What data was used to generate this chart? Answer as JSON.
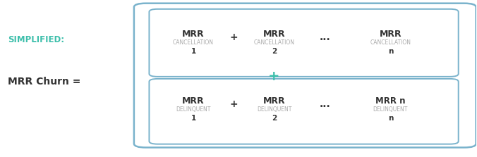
{
  "bg_color": "#ffffff",
  "teal_color": "#3dbfab",
  "gray_color": "#aaaaaa",
  "dark_color": "#333333",
  "blue_brace_color": "#7ab3cc",
  "simplified_text": "SIMPLIFIED:",
  "mrr_churn_text": "MRR Churn =",
  "top_row": [
    {
      "mrr": "MRR",
      "sub": "CANCELLATION",
      "num": "1"
    },
    {
      "mrr": "MRR",
      "sub": "CANCELLATION",
      "num": "2"
    },
    {
      "mrr": "MRR",
      "sub": "CANCELLATION",
      "num": "n"
    }
  ],
  "bottom_row": [
    {
      "mrr": "MRR",
      "sub": "DELINQUENT",
      "num": "1"
    },
    {
      "mrr": "MRR",
      "sub": "DELINQUENT",
      "num": "2"
    },
    {
      "mrr": "MRR n",
      "sub": "DELINQUENT",
      "num": "n"
    }
  ],
  "plus_color": "#333333",
  "teal_plus_color": "#3dbfab",
  "dots": "...",
  "figsize": [
    6.76,
    2.23
  ],
  "dpi": 100
}
